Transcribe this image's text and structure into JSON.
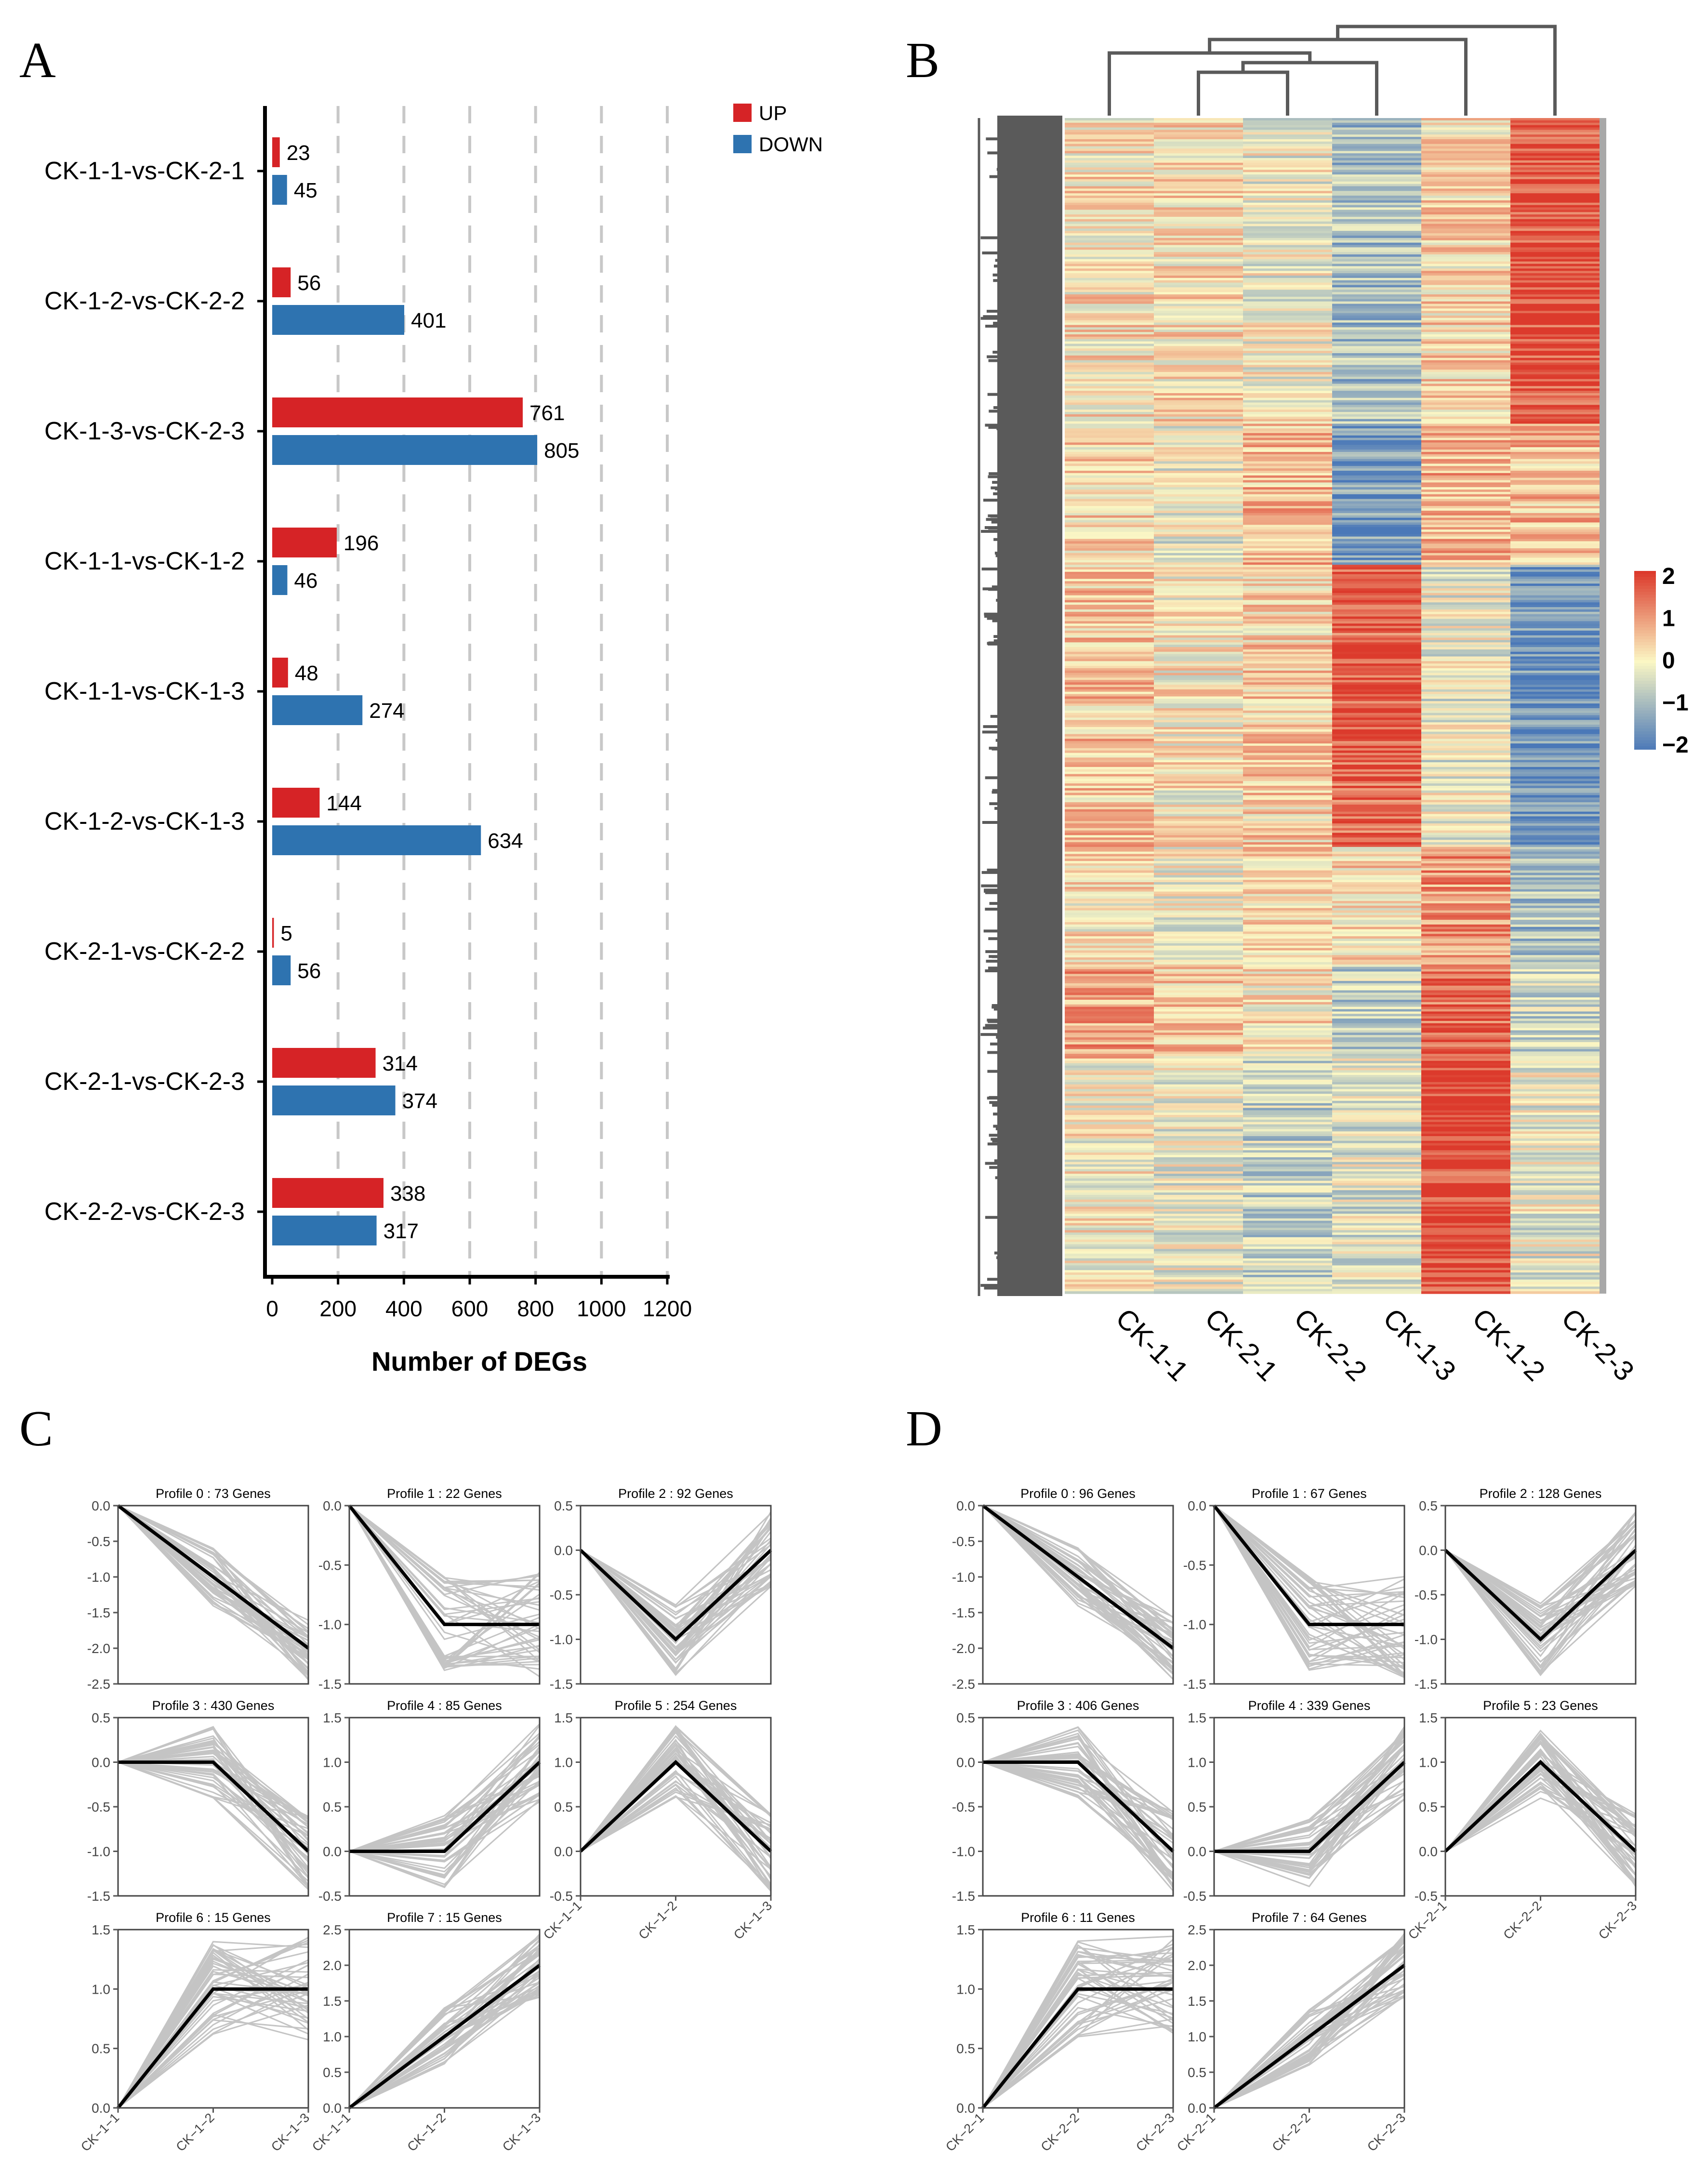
{
  "panels": {
    "A": "A",
    "B": "B",
    "C": "C",
    "D": "D"
  },
  "colors": {
    "up": "#d62326",
    "down": "#2e73b0",
    "dendrogram": "#5a5a5a",
    "profile_gray": "#c4c4c4",
    "profile_mean": "#000000",
    "heat_low": "#4a78b8",
    "heat_mid": "#fbf7c4",
    "heat_high": "#dc3a2c"
  },
  "chart_data": [
    {
      "type": "bar",
      "panel": "A",
      "orientation": "horizontal",
      "categories": [
        "CK-1-1-vs-CK-2-1",
        "CK-1-2-vs-CK-2-2",
        "CK-1-3-vs-CK-2-3",
        "CK-1-1-vs-CK-1-2",
        "CK-1-1-vs-CK-1-3",
        "CK-1-2-vs-CK-1-3",
        "CK-2-1-vs-CK-2-2",
        "CK-2-1-vs-CK-2-3",
        "CK-2-2-vs-CK-2-3"
      ],
      "series": [
        {
          "name": "UP",
          "values": [
            23,
            56,
            761,
            196,
            48,
            144,
            5,
            314,
            338
          ]
        },
        {
          "name": "DOWN",
          "values": [
            45,
            401,
            805,
            46,
            274,
            634,
            56,
            374,
            317
          ]
        }
      ],
      "xlabel": "Number of DEGs",
      "ylabel": "",
      "xlim": [
        0,
        1200
      ],
      "xticks": [
        "0",
        "200",
        "400",
        "600",
        "800",
        "1000",
        "1200"
      ],
      "grid": "vertical dashed",
      "legend": "top-right"
    },
    {
      "type": "heatmap",
      "panel": "B",
      "columns": [
        "CK-1-1",
        "CK-2-1",
        "CK-2-2",
        "CK-1-3",
        "CK-1-2",
        "CK-2-3"
      ],
      "colorbar_ticks": [
        "2",
        "1",
        "0",
        "−1",
        "−2"
      ],
      "colorbar_range": [
        -2,
        2
      ],
      "row_dendrogram": true,
      "column_dendrogram": true
    },
    {
      "type": "line",
      "panel": "C",
      "x": [
        "CK−1−1",
        "CK−1−2",
        "CK−1−3"
      ],
      "profiles": [
        {
          "title": "Profile 0 : 73 Genes",
          "mean": [
            0,
            -1,
            -2
          ],
          "ylim": [
            -2.5,
            0
          ],
          "yticks": [
            "0.0",
            "-0.5",
            "-1.0",
            "-1.5",
            "-2.0",
            "-2.5"
          ]
        },
        {
          "title": "Profile 1 : 22 Genes",
          "mean": [
            0,
            -1,
            -1
          ],
          "ylim": [
            -1.5,
            0
          ],
          "yticks": [
            "0.0",
            "-0.5",
            "-1.0",
            "-1.5"
          ]
        },
        {
          "title": "Profile 2 : 92 Genes",
          "mean": [
            0,
            -1,
            0
          ],
          "ylim": [
            -1.5,
            0.5
          ],
          "yticks": [
            "0.5",
            "0.0",
            "-0.5",
            "-1.0",
            "-1.5"
          ]
        },
        {
          "title": "Profile 3 : 430 Genes",
          "mean": [
            0,
            0,
            -1
          ],
          "ylim": [
            -1.5,
            0.5
          ],
          "yticks": [
            "0.5",
            "0.0",
            "-0.5",
            "-1.0",
            "-1.5"
          ]
        },
        {
          "title": "Profile 4 : 85 Genes",
          "mean": [
            0,
            0,
            1
          ],
          "ylim": [
            -0.5,
            1.5
          ],
          "yticks": [
            "1.5",
            "1.0",
            "0.5",
            "0.0",
            "-0.5"
          ]
        },
        {
          "title": "Profile 5 : 254 Genes",
          "mean": [
            0,
            1,
            0
          ],
          "ylim": [
            -0.5,
            1.5
          ],
          "yticks": [
            "1.5",
            "1.0",
            "0.5",
            "0.0",
            "-0.5"
          ]
        },
        {
          "title": "Profile 6 : 15 Genes",
          "mean": [
            0,
            1,
            1
          ],
          "ylim": [
            0,
            1.5
          ],
          "yticks": [
            "1.5",
            "1.0",
            "0.5",
            "0.0"
          ]
        },
        {
          "title": "Profile 7 : 15 Genes",
          "mean": [
            0,
            1,
            2
          ],
          "ylim": [
            0,
            2.5
          ],
          "yticks": [
            "2.5",
            "2.0",
            "1.5",
            "1.0",
            "0.5",
            "0.0"
          ]
        }
      ]
    },
    {
      "type": "line",
      "panel": "D",
      "x": [
        "CK−2−1",
        "CK−2−2",
        "CK−2−3"
      ],
      "profiles": [
        {
          "title": "Profile 0 : 96 Genes",
          "mean": [
            0,
            -1,
            -2
          ],
          "ylim": [
            -2.5,
            0
          ],
          "yticks": [
            "0.0",
            "-0.5",
            "-1.0",
            "-1.5",
            "-2.0",
            "-2.5"
          ]
        },
        {
          "title": "Profile 1 : 67 Genes",
          "mean": [
            0,
            -1,
            -1
          ],
          "ylim": [
            -1.5,
            0
          ],
          "yticks": [
            "0.0",
            "-0.5",
            "-1.0",
            "-1.5"
          ]
        },
        {
          "title": "Profile 2 : 128 Genes",
          "mean": [
            0,
            -1,
            0
          ],
          "ylim": [
            -1.5,
            0.5
          ],
          "yticks": [
            "0.5",
            "0.0",
            "-0.5",
            "-1.0",
            "-1.5"
          ]
        },
        {
          "title": "Profile 3 : 406 Genes",
          "mean": [
            0,
            0,
            -1
          ],
          "ylim": [
            -1.5,
            0.5
          ],
          "yticks": [
            "0.5",
            "0.0",
            "-0.5",
            "-1.0",
            "-1.5"
          ]
        },
        {
          "title": "Profile 4 : 339 Genes",
          "mean": [
            0,
            0,
            1
          ],
          "ylim": [
            -0.5,
            1.5
          ],
          "yticks": [
            "1.5",
            "1.0",
            "0.5",
            "0.0",
            "-0.5"
          ]
        },
        {
          "title": "Profile 5 : 23 Genes",
          "mean": [
            0,
            1,
            0
          ],
          "ylim": [
            -0.5,
            1.5
          ],
          "yticks": [
            "1.5",
            "1.0",
            "0.5",
            "0.0",
            "-0.5"
          ]
        },
        {
          "title": "Profile 6 : 11 Genes",
          "mean": [
            0,
            1,
            1
          ],
          "ylim": [
            0,
            1.5
          ],
          "yticks": [
            "1.5",
            "1.0",
            "0.5",
            "0.0"
          ]
        },
        {
          "title": "Profile 7 : 64 Genes",
          "mean": [
            0,
            1,
            2
          ],
          "ylim": [
            0,
            2.5
          ],
          "yticks": [
            "2.5",
            "2.0",
            "1.5",
            "1.0",
            "0.5",
            "0.0"
          ]
        }
      ]
    }
  ]
}
